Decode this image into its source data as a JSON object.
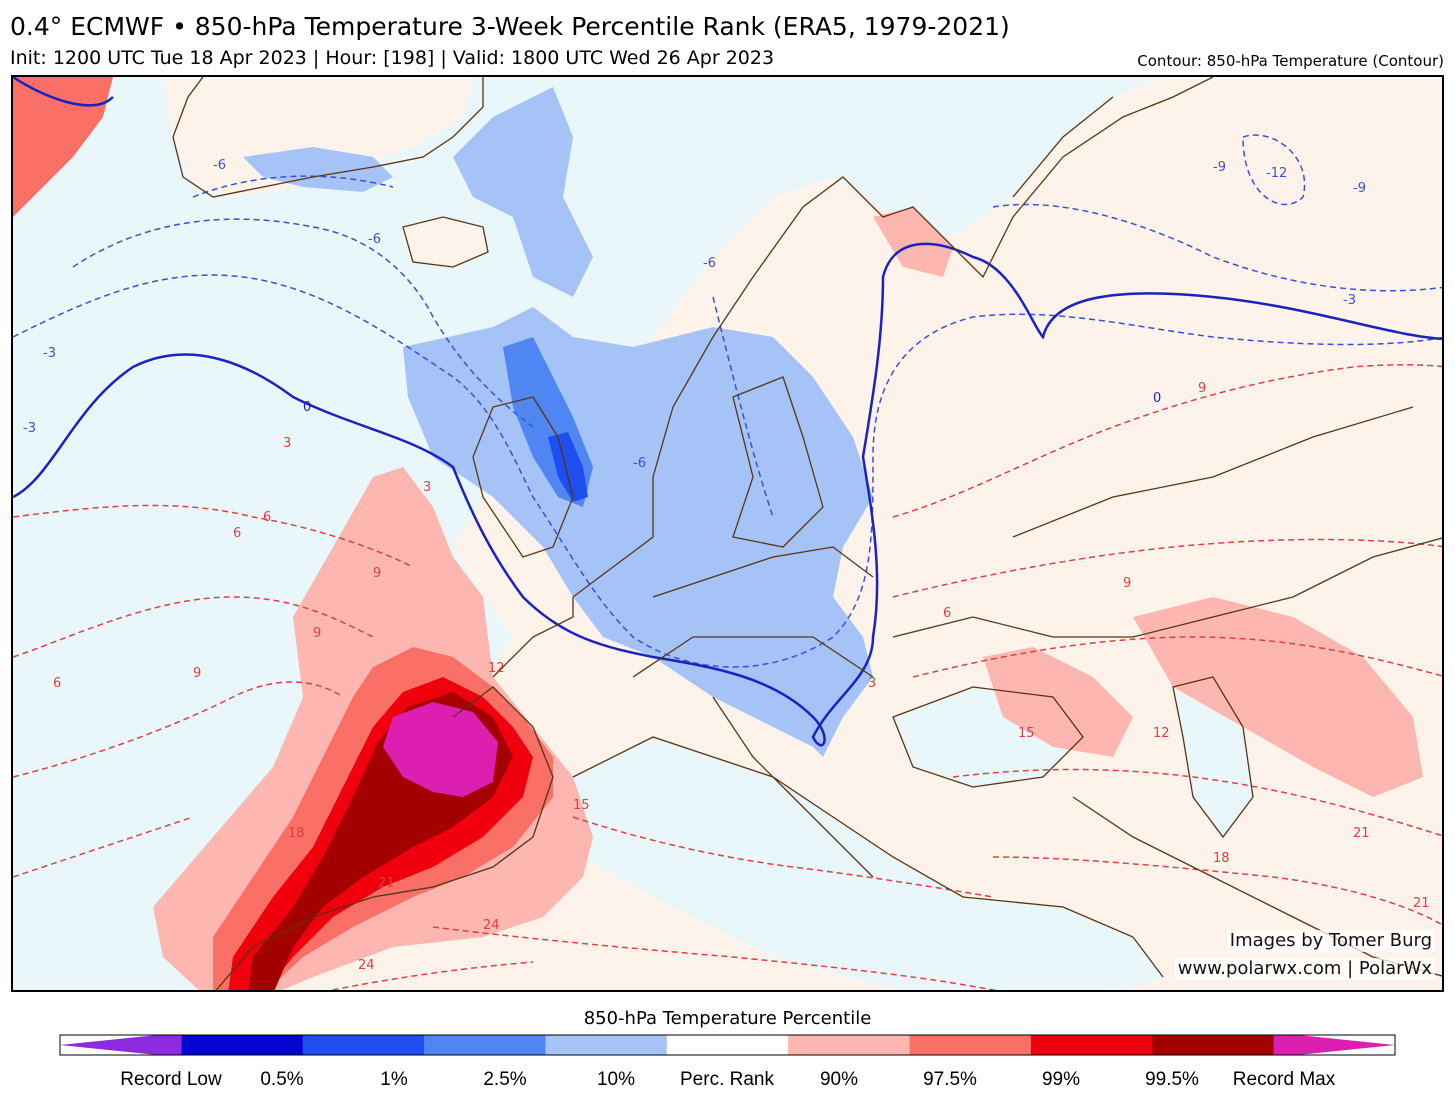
{
  "header": {
    "title": "0.4° ECMWF • 850-hPa Temperature 3-Week Percentile Rank (ERA5, 1979-2021)",
    "subtitle": "Init: 1200 UTC Tue 18 Apr 2023 | Hour: [198] | Valid: 1800 UTC Wed 26 Apr 2023",
    "contour_note": "Contour: 850-hPa Temperature (Contour)"
  },
  "map": {
    "credit_line1": "Images by Tomer Burg",
    "credit_line2": "www.polarwx.com | PolarWx",
    "contour_labels": [
      "-12",
      "-9",
      "-9",
      "-6",
      "-6",
      "-6",
      "-6",
      "-3",
      "-3",
      "-3",
      "0",
      "0",
      "3",
      "3",
      "3",
      "6",
      "6",
      "6",
      "6",
      "9",
      "9",
      "9",
      "9",
      "9",
      "12",
      "12",
      "15",
      "15",
      "18",
      "18",
      "21",
      "21",
      "21",
      "24",
      "24"
    ]
  },
  "colorbar": {
    "title": "850-hPa Temperature Percentile",
    "bins": [
      {
        "color": "#8e2ae0"
      },
      {
        "color": "#0505d2"
      },
      {
        "color": "#1e4ef0"
      },
      {
        "color": "#4f86f2"
      },
      {
        "color": "#a6c3f8"
      },
      {
        "color": "#ffffff"
      },
      {
        "color": "#fdb6b0"
      },
      {
        "color": "#fa7067"
      },
      {
        "color": "#f0000c"
      },
      {
        "color": "#a40000"
      },
      {
        "color": "#dc1fb0"
      }
    ],
    "labels": [
      "Record Low",
      "0.5%",
      "1%",
      "2.5%",
      "10%",
      "Perc. Rank",
      "90%",
      "97.5%",
      "99%",
      "99.5%",
      "Record Max"
    ]
  },
  "colors": {
    "ocean": "#eaf7fa",
    "land_warm": "#fdf3ea",
    "cold_contour": "#3b4fd6",
    "zero_contour": "#1a22c4",
    "warm_contour": "#e04040",
    "coastline": "#5a3412"
  }
}
